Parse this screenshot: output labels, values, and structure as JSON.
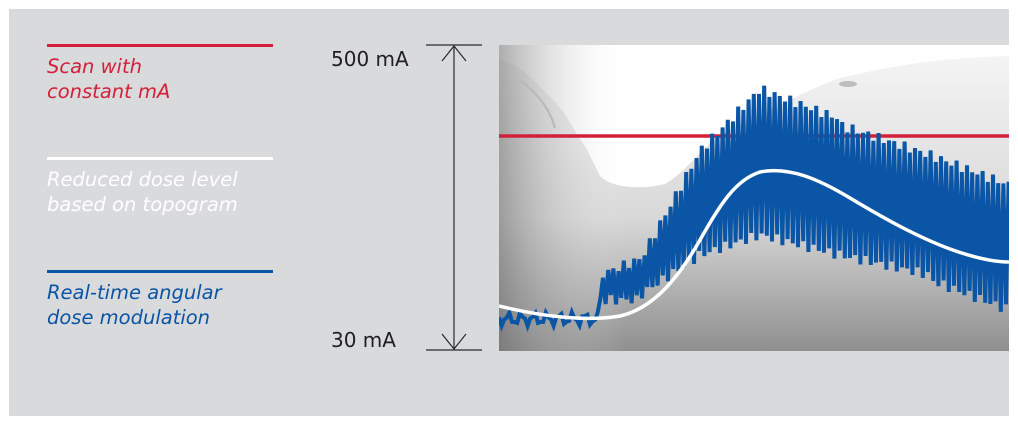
{
  "legend": [
    {
      "label": "Scan with\nconstant mA",
      "color": "#d41f3a",
      "icon": "red-line"
    },
    {
      "label": "Reduced dose level\nbased on topogram",
      "color": "#ffffff",
      "icon": "white-line"
    },
    {
      "label": "Real-time angular\ndose modulation",
      "color": "#0a55a5",
      "icon": "blue-line"
    }
  ],
  "axis": {
    "max_label": "500 mA",
    "min_label": "30 mA"
  },
  "colors": {
    "panel": "#d9dadc",
    "constant": "#d41f3a",
    "reduced": "#ffffff",
    "modulation": "#0a55a5",
    "axis": "#2a2a2a"
  }
}
